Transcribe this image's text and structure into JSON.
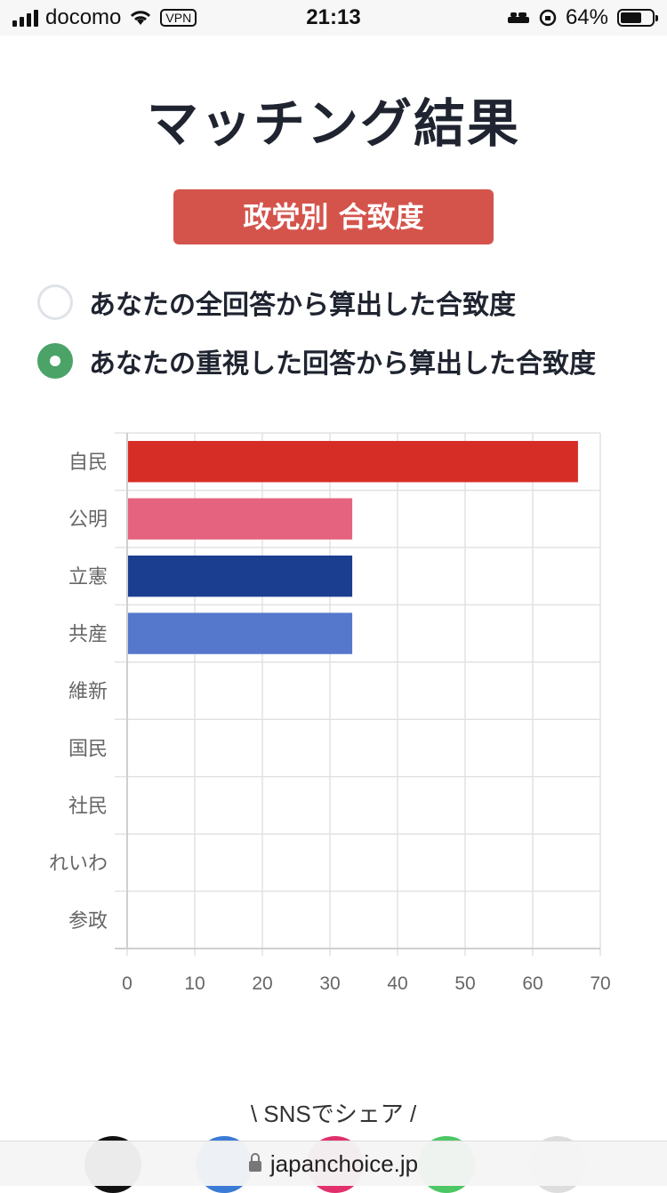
{
  "status_bar": {
    "carrier": "docomo",
    "vpn": "VPN",
    "time": "21:13",
    "battery": "64%",
    "battery_level": 0.64
  },
  "page": {
    "title": "マッチング結果",
    "tab_label": "政党別 合致度",
    "options": [
      {
        "label": "あなたの全回答から算出した合致度",
        "selected": false
      },
      {
        "label": "あなたの重視した回答から算出した合致度",
        "selected": true
      }
    ]
  },
  "chart_data": {
    "type": "bar",
    "orientation": "horizontal",
    "categories": [
      "自民",
      "公明",
      "立憲",
      "共産",
      "維新",
      "国民",
      "社民",
      "れいわ",
      "参政"
    ],
    "values": [
      66.7,
      33.3,
      33.3,
      33.3,
      0,
      0,
      0,
      0,
      0
    ],
    "colors": [
      "#d62e26",
      "#e5637f",
      "#1b3e91",
      "#5577cc",
      "#888888",
      "#888888",
      "#888888",
      "#888888",
      "#888888"
    ],
    "x_ticks": [
      "0",
      "10",
      "20",
      "30",
      "40",
      "50",
      "60",
      "70"
    ],
    "xlim": [
      0,
      70
    ],
    "grid": true,
    "legend": "none"
  },
  "share": {
    "label": "\\ SNSでシェア /",
    "icon_colors": [
      "#111111",
      "#3a7bd5",
      "#e1306c",
      "#4cc764",
      "#dddddd"
    ]
  },
  "browser": {
    "url": "japanchoice.jp"
  }
}
